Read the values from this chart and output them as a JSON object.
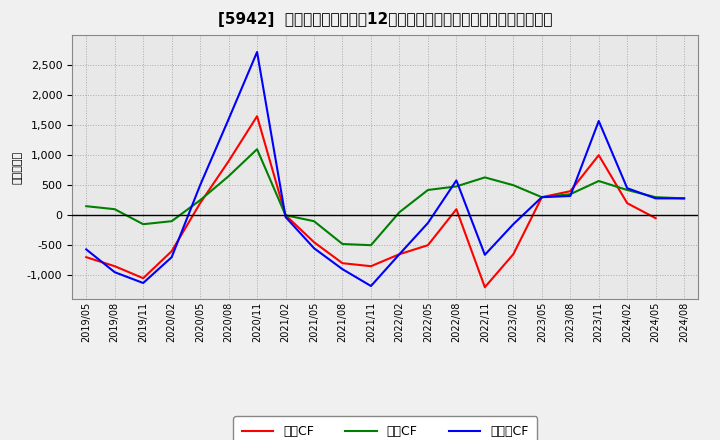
{
  "title": "[5942]  キャッシュフローの12か月移動合計の対前年同期増減額の推移",
  "ylabel": "（百万円）",
  "background_color": "#f0f0f0",
  "plot_bg_color": "#e8e8e8",
  "grid_color": "#aaaaaa",
  "x_labels": [
    "2019/05",
    "2019/08",
    "2019/11",
    "2020/02",
    "2020/05",
    "2020/08",
    "2020/11",
    "2021/02",
    "2021/05",
    "2021/08",
    "2021/11",
    "2022/02",
    "2022/05",
    "2022/08",
    "2022/11",
    "2023/02",
    "2023/05",
    "2023/08",
    "2023/11",
    "2024/02",
    "2024/05",
    "2024/08"
  ],
  "eigyo_cf": [
    -700,
    -850,
    -1050,
    -600,
    200,
    900,
    1650,
    0,
    -450,
    -800,
    -850,
    -650,
    -500,
    100,
    -1200,
    -650,
    300,
    400,
    1000,
    200,
    -50,
    null
  ],
  "toushi_cf": [
    150,
    100,
    -150,
    -100,
    250,
    650,
    1100,
    0,
    -100,
    -480,
    -500,
    50,
    420,
    480,
    630,
    500,
    300,
    350,
    570,
    420,
    300,
    280
  ],
  "free_cf": [
    -570,
    -950,
    -1130,
    -700,
    500,
    1600,
    2720,
    -30,
    -550,
    -900,
    -1180,
    -650,
    -130,
    580,
    -660,
    -150,
    300,
    320,
    1570,
    450,
    280,
    280
  ],
  "eigyo_color": "#ff0000",
  "toushi_color": "#008000",
  "free_color": "#0000ff",
  "ylim_min": -1400,
  "ylim_max": 3000,
  "yticks": [
    -1000,
    -500,
    0,
    500,
    1000,
    1500,
    2000,
    2500
  ],
  "legend_labels": [
    "営業CF",
    "投資CF",
    "フリーCF"
  ]
}
